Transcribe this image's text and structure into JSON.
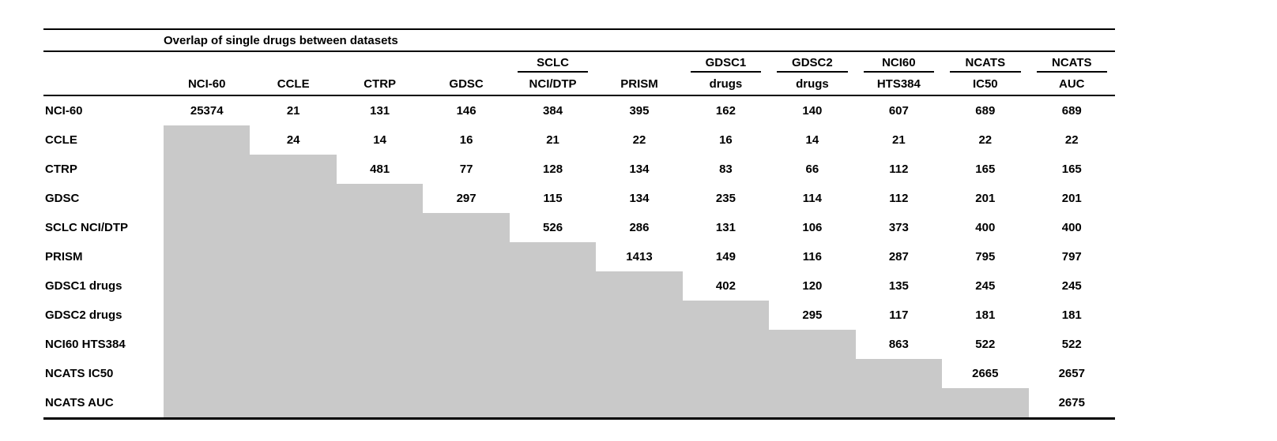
{
  "page": {
    "background": "#ffffff"
  },
  "chart_data": {
    "type": "table",
    "title": "Overlap of single drugs between datasets",
    "column_groups": [
      "",
      "",
      "",
      "",
      "SCLC",
      "",
      "GDSC1",
      "GDSC2",
      "NCI60",
      "NCATS",
      "NCATS"
    ],
    "column_labels": [
      "NCI-60",
      "CCLE",
      "CTRP",
      "GDSC",
      "NCI/DTP",
      "PRISM",
      "drugs",
      "drugs",
      "HTS384",
      "IC50",
      "AUC"
    ],
    "row_labels": [
      "NCI-60",
      "CCLE",
      "CTRP",
      "GDSC",
      "SCLC NCI/DTP",
      "PRISM",
      "GDSC1 drugs",
      "GDSC2 drugs",
      "NCI60 HTS384",
      "NCATS IC50",
      "NCATS AUC"
    ],
    "matrix": [
      [
        25374,
        21,
        131,
        146,
        384,
        395,
        162,
        140,
        607,
        689,
        689
      ],
      [
        null,
        24,
        14,
        16,
        21,
        22,
        16,
        14,
        21,
        22,
        22
      ],
      [
        null,
        null,
        481,
        77,
        128,
        134,
        83,
        66,
        112,
        165,
        165
      ],
      [
        null,
        null,
        null,
        297,
        115,
        134,
        235,
        114,
        112,
        201,
        201
      ],
      [
        null,
        null,
        null,
        null,
        526,
        286,
        131,
        106,
        373,
        400,
        400
      ],
      [
        null,
        null,
        null,
        null,
        null,
        1413,
        149,
        116,
        287,
        795,
        797
      ],
      [
        null,
        null,
        null,
        null,
        null,
        null,
        402,
        120,
        135,
        245,
        245
      ],
      [
        null,
        null,
        null,
        null,
        null,
        null,
        null,
        295,
        117,
        181,
        181
      ],
      [
        null,
        null,
        null,
        null,
        null,
        null,
        null,
        null,
        863,
        522,
        522
      ],
      [
        null,
        null,
        null,
        null,
        null,
        null,
        null,
        null,
        null,
        2665,
        2657
      ],
      [
        null,
        null,
        null,
        null,
        null,
        null,
        null,
        null,
        null,
        null,
        2675
      ]
    ],
    "styles": {
      "masked_cell_color": "#c9c9c9",
      "rule_color": "#000000",
      "masked_meaning": "lower-triangle cells are gray filled with no value"
    }
  }
}
